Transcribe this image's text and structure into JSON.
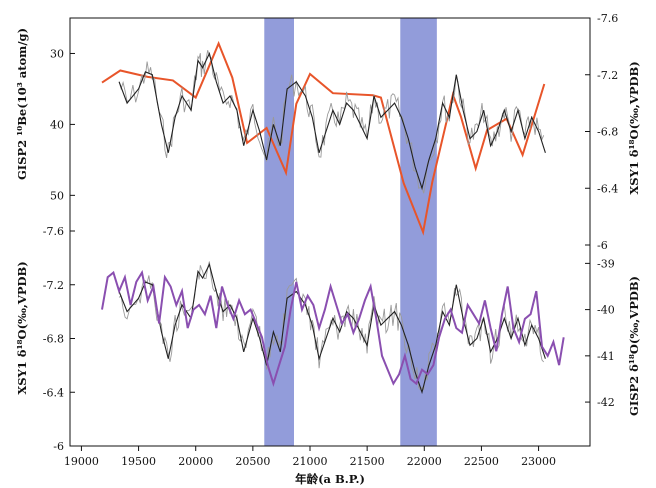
{
  "chart_data": {
    "type": "line",
    "x_axis": {
      "label": "年龄(a B.P.)",
      "range": [
        18900,
        23450
      ],
      "ticks": [
        19000,
        19500,
        20000,
        20500,
        21000,
        21500,
        22000,
        22500,
        23000
      ]
    },
    "highlight_bands": [
      {
        "x0": 20600,
        "x1": 20860,
        "color": "#7f8bd4"
      },
      {
        "x0": 21790,
        "x1": 22110,
        "color": "#7f8bd4"
      }
    ],
    "panels": [
      {
        "name": "upper",
        "left_axis": {
          "label": "GISP2 ¹⁰Be(10³ atom/g)",
          "range": [
            25,
            57
          ],
          "reversed": true,
          "ticks": [
            30,
            40,
            50
          ]
        },
        "right_axis": {
          "label": "XSY1 δ¹⁸O(‰,VPDB)",
          "range": [
            -7.6,
            -6.0
          ],
          "reversed": true,
          "ticks": [
            -7.6,
            -7.2,
            -6.8,
            -6.4,
            -6.0
          ]
        },
        "series": [
          {
            "name": "GISP2 10Be",
            "axis": "left",
            "color": "#e8552a",
            "x": [
              19180,
              19340,
              19580,
              19800,
              20000,
              20130,
              20200,
              20320,
              20450,
              20620,
              20790,
              20880,
              21000,
              21200,
              21550,
              21620,
              21820,
              21990,
              22070,
              22250,
              22320,
              22450,
              22550,
              22720,
              22860,
              23050
            ],
            "y": [
              34.1,
              32.4,
              33.3,
              33.8,
              36.2,
              31.3,
              28.6,
              33.4,
              42.6,
              40.5,
              46.8,
              37.1,
              32.9,
              35.6,
              35.9,
              36.2,
              48.3,
              55.2,
              48.1,
              35.8,
              38.9,
              46.2,
              40.8,
              39.2,
              44.3,
              34.3
            ]
          },
          {
            "name": "XSY1 δ18O",
            "axis": "right",
            "color": "#222222",
            "raw_color": "#9a9a9a",
            "x": [
              19330,
              19400,
              19500,
              19560,
              19620,
              19700,
              19760,
              19820,
              19880,
              19960,
              20020,
              20060,
              20120,
              20180,
              20240,
              20300,
              20360,
              20420,
              20500,
              20560,
              20620,
              20680,
              20740,
              20800,
              20880,
              20960,
              21020,
              21080,
              21140,
              21200,
              21260,
              21320,
              21380,
              21440,
              21500,
              21560,
              21620,
              21680,
              21740,
              21800,
              21860,
              21920,
              21980,
              22040,
              22100,
              22160,
              22220,
              22280,
              22340,
              22400,
              22460,
              22520,
              22580,
              22640,
              22700,
              22760,
              22820,
              22880,
              22940,
              23000,
              23060
            ],
            "y": [
              -7.15,
              -7.0,
              -7.1,
              -7.22,
              -7.2,
              -6.85,
              -6.65,
              -6.9,
              -7.05,
              -6.95,
              -7.3,
              -7.25,
              -7.35,
              -7.15,
              -7.0,
              -7.05,
              -6.95,
              -6.7,
              -6.95,
              -6.8,
              -6.6,
              -6.85,
              -6.7,
              -7.1,
              -7.15,
              -7.05,
              -6.9,
              -6.65,
              -6.8,
              -6.95,
              -6.85,
              -7.0,
              -6.95,
              -6.85,
              -6.75,
              -7.05,
              -6.9,
              -6.95,
              -7.0,
              -6.9,
              -6.75,
              -6.55,
              -6.4,
              -6.6,
              -6.75,
              -7.0,
              -6.9,
              -7.2,
              -6.95,
              -6.75,
              -6.8,
              -6.95,
              -6.7,
              -6.8,
              -6.95,
              -6.8,
              -6.95,
              -6.75,
              -6.9,
              -6.8,
              -6.65
            ]
          }
        ]
      },
      {
        "name": "lower",
        "left_axis": {
          "label": "XSY1 δ¹⁸O(‰,VPDB)",
          "range": [
            -7.6,
            -6.0
          ],
          "reversed": true,
          "ticks": [
            -7.6,
            -7.2,
            -6.8,
            -6.4,
            -6.0
          ]
        },
        "right_axis": {
          "label": "GISP2 δ¹⁸O(‰,VPDB)",
          "range": [
            -38.3,
            -42.95
          ],
          "reversed": false,
          "ticks": [
            -39,
            -40,
            -41,
            -42
          ]
        },
        "series": [
          {
            "name": "XSY1 δ18O",
            "axis": "left",
            "color": "#222222",
            "raw_color": "#9a9a9a",
            "x": [
              19330,
              19400,
              19500,
              19560,
              19620,
              19700,
              19760,
              19820,
              19880,
              19960,
              20020,
              20060,
              20120,
              20180,
              20240,
              20300,
              20360,
              20420,
              20500,
              20560,
              20620,
              20680,
              20740,
              20800,
              20880,
              20960,
              21020,
              21080,
              21140,
              21200,
              21260,
              21320,
              21380,
              21440,
              21500,
              21560,
              21620,
              21680,
              21740,
              21800,
              21860,
              21920,
              21980,
              22040,
              22100,
              22160,
              22220,
              22280,
              22340,
              22400,
              22460,
              22520,
              22580,
              22640,
              22700,
              22760,
              22820,
              22880,
              22940,
              23000,
              23060
            ],
            "y": [
              -7.15,
              -7.0,
              -7.1,
              -7.22,
              -7.2,
              -6.85,
              -6.65,
              -6.9,
              -7.05,
              -6.95,
              -7.3,
              -7.25,
              -7.35,
              -7.15,
              -7.0,
              -7.05,
              -6.95,
              -6.7,
              -6.95,
              -6.8,
              -6.6,
              -6.85,
              -6.7,
              -7.1,
              -7.15,
              -7.05,
              -6.9,
              -6.65,
              -6.8,
              -6.95,
              -6.85,
              -7.0,
              -6.95,
              -6.85,
              -6.75,
              -7.05,
              -6.9,
              -6.95,
              -7.0,
              -6.9,
              -6.75,
              -6.55,
              -6.4,
              -6.6,
              -6.75,
              -7.0,
              -6.9,
              -7.2,
              -6.95,
              -6.75,
              -6.8,
              -6.95,
              -6.7,
              -6.8,
              -6.95,
              -6.8,
              -6.95,
              -6.75,
              -6.9,
              -6.8,
              -6.65
            ]
          },
          {
            "name": "GISP2 δ18O",
            "axis": "right",
            "color": "#8a4fb0",
            "x": [
              19180,
              19230,
              19280,
              19330,
              19380,
              19430,
              19480,
              19530,
              19580,
              19630,
              19680,
              19730,
              19780,
              19830,
              19880,
              19930,
              19980,
              20030,
              20080,
              20130,
              20180,
              20230,
              20280,
              20330,
              20380,
              20430,
              20480,
              20530,
              20580,
              20630,
              20680,
              20730,
              20780,
              20830,
              20880,
              20930,
              20980,
              21030,
              21080,
              21130,
              21180,
              21230,
              21280,
              21330,
              21380,
              21430,
              21480,
              21530,
              21580,
              21630,
              21680,
              21730,
              21780,
              21830,
              21880,
              21930,
              21980,
              22030,
              22080,
              22130,
              22180,
              22230,
              22280,
              22330,
              22380,
              22430,
              22480,
              22530,
              22580,
              22630,
              22680,
              22730,
              22780,
              22830,
              22880,
              22930,
              22980,
              23030,
              23080,
              23130,
              23180,
              23220
            ],
            "y": [
              -40.0,
              -39.3,
              -39.2,
              -39.6,
              -39.3,
              -39.9,
              -39.4,
              -39.2,
              -39.8,
              -39.5,
              -40.3,
              -39.3,
              -39.5,
              -39.9,
              -39.6,
              -40.4,
              -40.0,
              -39.9,
              -40.1,
              -39.7,
              -40.4,
              -39.5,
              -39.9,
              -40.2,
              -39.8,
              -40.1,
              -40.0,
              -40.3,
              -40.6,
              -41.2,
              -41.6,
              -41.2,
              -40.8,
              -40.0,
              -39.4,
              -40.0,
              -39.7,
              -39.9,
              -40.4,
              -40.0,
              -39.5,
              -39.9,
              -40.3,
              -40.1,
              -40.5,
              -40.2,
              -39.8,
              -39.5,
              -40.2,
              -41.0,
              -41.3,
              -41.6,
              -41.4,
              -41.0,
              -41.5,
              -41.6,
              -41.3,
              -41.4,
              -41.2,
              -40.6,
              -40.2,
              -40.0,
              -40.4,
              -40.5,
              -39.9,
              -40.1,
              -40.3,
              -39.8,
              -40.4,
              -40.9,
              -40.1,
              -39.5,
              -40.4,
              -40.7,
              -40.2,
              -40.1,
              -39.6,
              -40.8,
              -41.0,
              -40.7,
              -41.2,
              -40.6
            ]
          }
        ]
      }
    ]
  }
}
